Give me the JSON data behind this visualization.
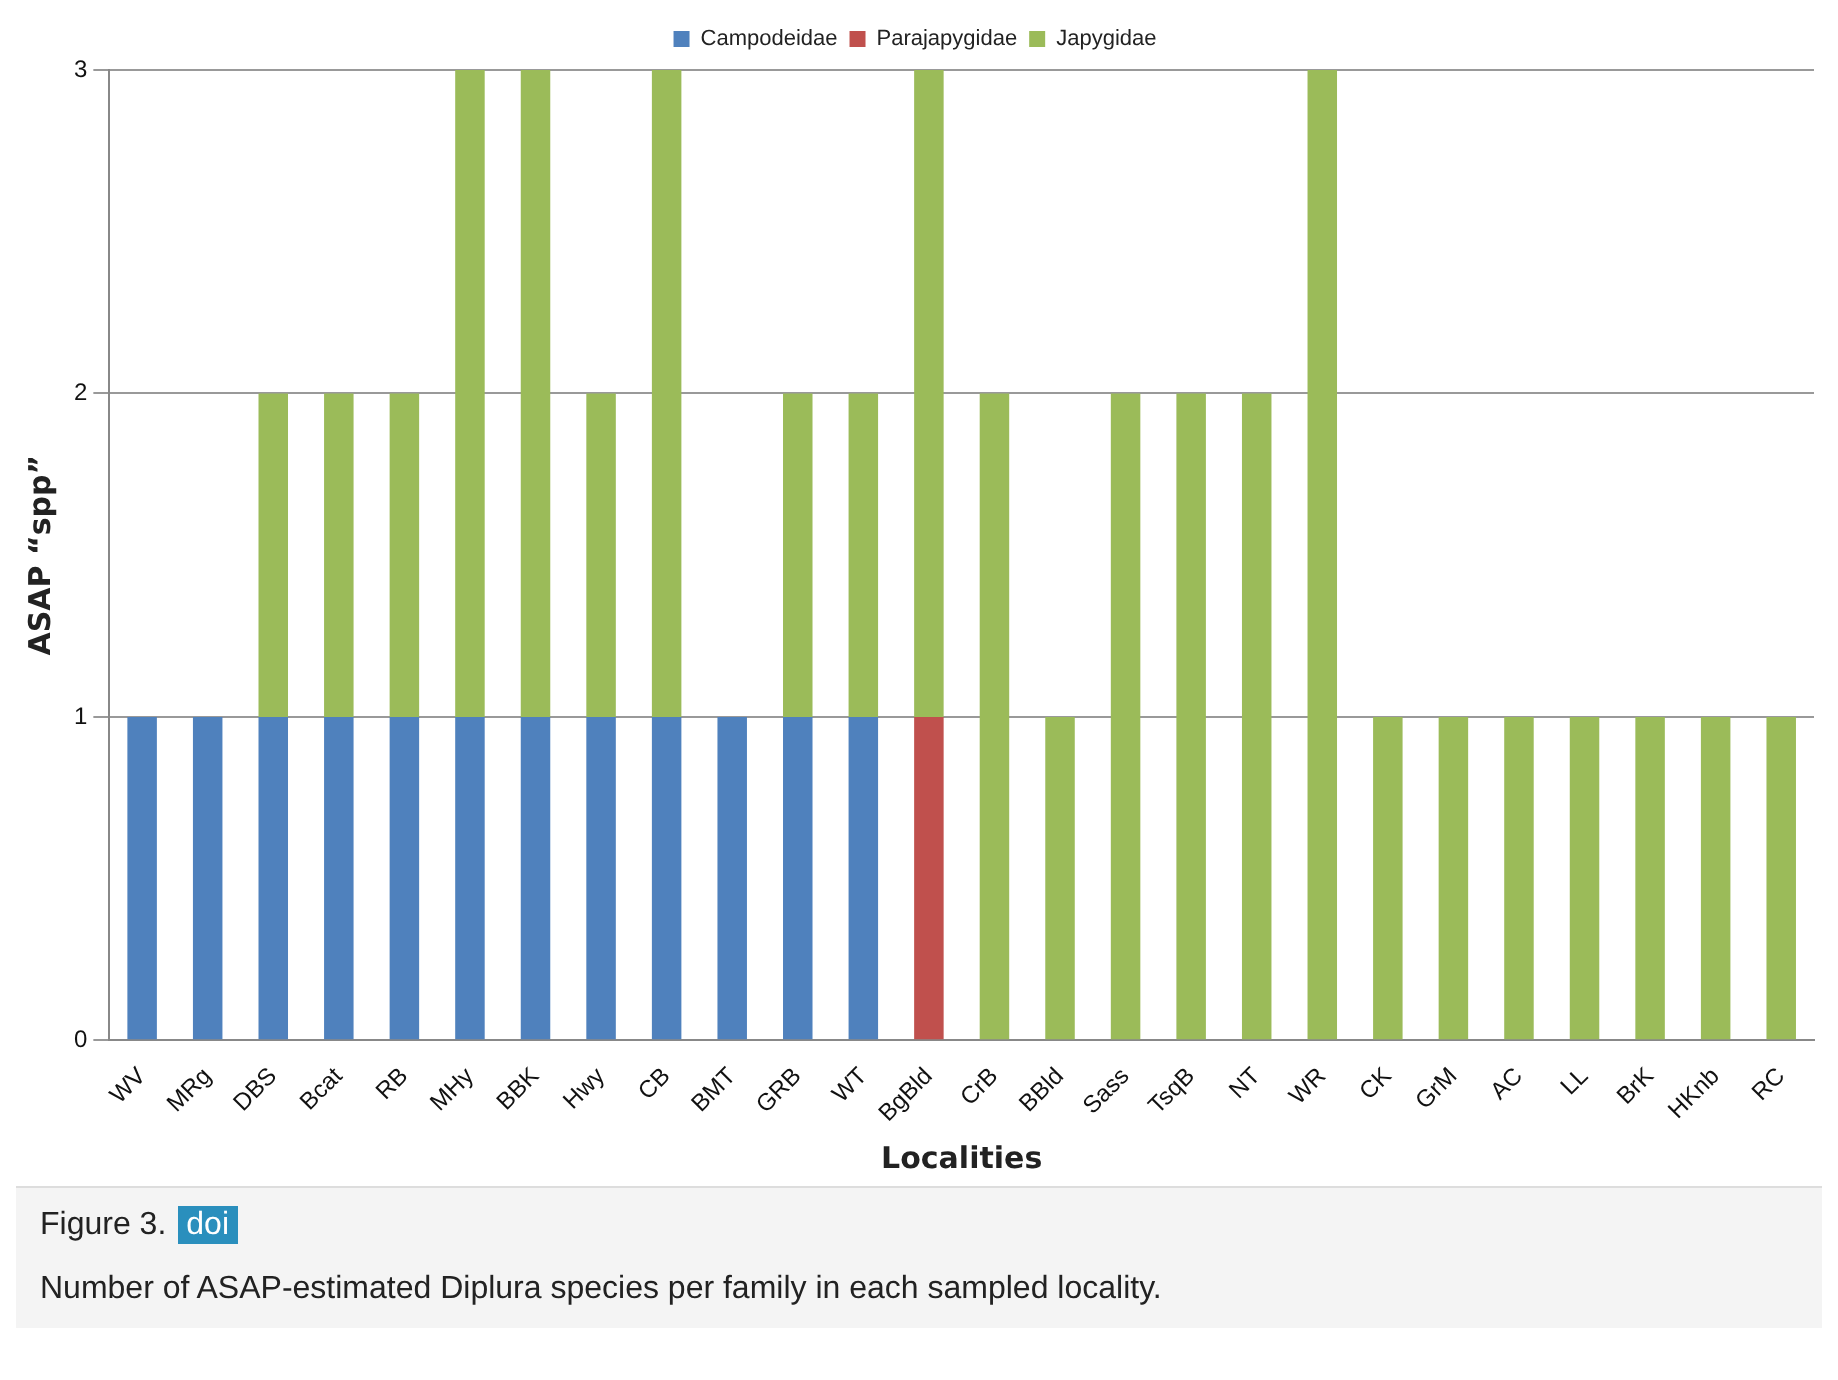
{
  "chart_data": {
    "type": "bar",
    "stacked": true,
    "xlabel": "Localities",
    "ylabel": "ASAP “spp”",
    "categories": [
      "WV",
      "MRg",
      "DBS",
      "Bcat",
      "RB",
      "MHy",
      "BBK",
      "Hwy",
      "CB",
      "BMT",
      "GRB",
      "WT",
      "BgBld",
      "CrB",
      "BBld",
      "Sass",
      "TsqB",
      "NT",
      "WR",
      "CK",
      "GrM",
      "AC",
      "LL",
      "BrK",
      "HKnb",
      "RC"
    ],
    "series": [
      {
        "name": "Campodeidae",
        "color": "#4f81bd",
        "values": [
          1,
          1,
          1,
          1,
          1,
          1,
          1,
          1,
          1,
          1,
          1,
          1,
          0,
          0,
          0,
          0,
          0,
          0,
          0,
          0,
          0,
          0,
          0,
          0,
          0,
          0
        ]
      },
      {
        "name": "Parajapygidae",
        "color": "#c0504d",
        "values": [
          0,
          0,
          0,
          0,
          0,
          0,
          0,
          0,
          0,
          0,
          0,
          0,
          1,
          0,
          0,
          0,
          0,
          0,
          0,
          0,
          0,
          0,
          0,
          0,
          0,
          0
        ]
      },
      {
        "name": "Japygidae",
        "color": "#9bbb59",
        "values": [
          0,
          0,
          1,
          1,
          1,
          2,
          2,
          1,
          2,
          0,
          1,
          1,
          2,
          2,
          1,
          2,
          2,
          2,
          3,
          1,
          1,
          1,
          1,
          1,
          1,
          1
        ]
      }
    ],
    "ylim": [
      0,
      3
    ],
    "yticks": [
      0,
      1,
      2,
      3
    ],
    "grid": "y",
    "legend": "top",
    "annotations": [
      "Figure 3.",
      "doi",
      "Number of ASAP-estimated Diplura species per family in each sampled locality."
    ]
  }
}
